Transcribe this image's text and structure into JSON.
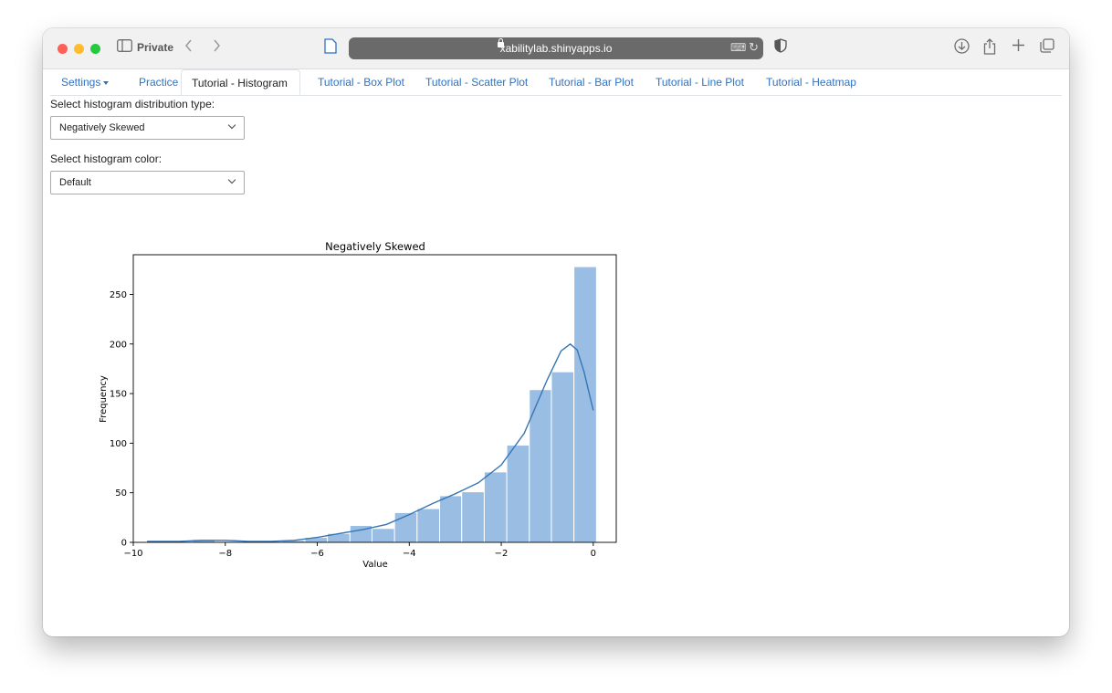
{
  "browser": {
    "private_label": "Private",
    "url": "xabilitylab.shinyapps.io"
  },
  "tabs": [
    {
      "label": "Settings",
      "dropdown": true
    },
    {
      "label": "Practice"
    },
    {
      "label": "Tutorial - Histogram",
      "active": true
    },
    {
      "label": "Tutorial - Box Plot"
    },
    {
      "label": "Tutorial - Scatter Plot"
    },
    {
      "label": "Tutorial - Bar Plot"
    },
    {
      "label": "Tutorial - Line Plot"
    },
    {
      "label": "Tutorial - Heatmap"
    }
  ],
  "controls": {
    "distribution_label": "Select histogram distribution type:",
    "distribution_value": "Negatively Skewed",
    "color_label": "Select histogram color:",
    "color_value": "Default"
  },
  "colors": {
    "accent": "#2d72c4",
    "bar_fill": "#99bde3",
    "kde_line": "#3775b5"
  },
  "chart_data": {
    "type": "bar",
    "title": "Negatively Skewed",
    "xlabel": "Value",
    "ylabel": "Frequency",
    "xlim": [
      -10.0,
      0.5
    ],
    "ylim": [
      0,
      290
    ],
    "xticks": [
      -10,
      -8,
      -6,
      -4,
      -2,
      0
    ],
    "yticks": [
      0,
      50,
      100,
      150,
      200,
      250
    ],
    "bin_edges": [
      -9.68,
      -9.19,
      -8.71,
      -8.22,
      -7.73,
      -7.24,
      -6.76,
      -6.27,
      -5.78,
      -5.29,
      -4.81,
      -4.32,
      -3.83,
      -3.34,
      -2.86,
      -2.37,
      -1.88,
      -1.39,
      -0.91,
      -0.42,
      0.07
    ],
    "counts": [
      1,
      1,
      3,
      1,
      0,
      1,
      2,
      5,
      9,
      17,
      14,
      30,
      34,
      47,
      51,
      71,
      98,
      154,
      172,
      278
    ],
    "kde": {
      "x": [
        -9.7,
        -9.0,
        -8.5,
        -8.0,
        -7.5,
        -7.0,
        -6.5,
        -6.0,
        -5.5,
        -5.0,
        -4.5,
        -4.0,
        -3.5,
        -3.0,
        -2.5,
        -2.0,
        -1.5,
        -1.0,
        -0.7,
        -0.5,
        -0.35,
        -0.2,
        0.0
      ],
      "y": [
        1,
        1,
        2,
        2,
        1,
        1,
        2,
        5,
        9,
        13,
        18,
        28,
        39,
        49,
        60,
        78,
        110,
        164,
        193,
        200,
        194,
        172,
        133
      ]
    },
    "grid": false,
    "legend": false
  }
}
